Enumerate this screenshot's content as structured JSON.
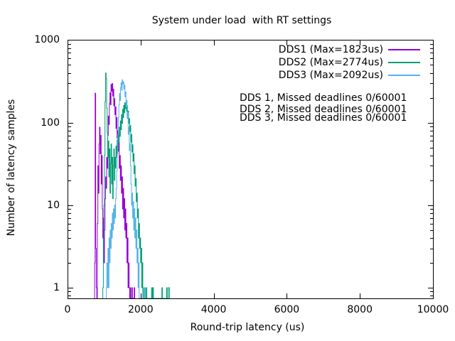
{
  "title": "System under load  with RT settings",
  "axes": {
    "xlabel": "Round-trip latency (us)",
    "ylabel": "Number of latency samples",
    "x_ticks": [
      0,
      2000,
      4000,
      6000,
      8000,
      10000
    ],
    "y_ticks": [
      1,
      10,
      100,
      1000
    ]
  },
  "legend": [
    {
      "label": "DDS1 (Max=1823us)",
      "color": "#9400d3"
    },
    {
      "label": "DDS2 (Max=2774us)",
      "color": "#009e73"
    },
    {
      "label": "DDS3 (Max=2092us)",
      "color": "#56b4e9"
    }
  ],
  "annotations": [
    "DDS 1, Missed deadlines 0/60001",
    "DDS 2, Missed deadlines 0/60001",
    "DDS 3, Missed deadlines 0/60001"
  ],
  "chart_data": {
    "type": "bar",
    "subtype": "latency-histogram-steps",
    "title": "System under load  with RT settings",
    "xlabel": "Round-trip latency (us)",
    "ylabel": "Number of latency samples",
    "x_range": [
      0,
      10000
    ],
    "y_scale": "log10",
    "y_range": [
      1,
      1000
    ],
    "grid": false,
    "legend_position": "top-right-inside",
    "bin_width_us": 15,
    "series": [
      {
        "name": "DDS1 (Max=1823us)",
        "color": "#9400d3",
        "max_us": 1823,
        "missed_deadlines": "0/60001",
        "points": [
          [
            740,
            2
          ],
          [
            755,
            227
          ],
          [
            770,
            3
          ],
          [
            785,
            1
          ],
          [
            815,
            6
          ],
          [
            830,
            30
          ],
          [
            845,
            14
          ],
          [
            860,
            55
          ],
          [
            875,
            88
          ],
          [
            890,
            42
          ],
          [
            905,
            70
          ],
          [
            920,
            18
          ],
          [
            935,
            40
          ],
          [
            950,
            9
          ],
          [
            965,
            4
          ],
          [
            980,
            7
          ],
          [
            995,
            2
          ],
          [
            1010,
            5
          ],
          [
            1025,
            12
          ],
          [
            1040,
            22
          ],
          [
            1055,
            16
          ],
          [
            1070,
            38
          ],
          [
            1085,
            28
          ],
          [
            1100,
            70
          ],
          [
            1115,
            120
          ],
          [
            1130,
            95
          ],
          [
            1145,
            170
          ],
          [
            1160,
            230
          ],
          [
            1175,
            165
          ],
          [
            1190,
            290
          ],
          [
            1205,
            240
          ],
          [
            1220,
            297
          ],
          [
            1235,
            210
          ],
          [
            1250,
            255
          ],
          [
            1265,
            160
          ],
          [
            1280,
            195
          ],
          [
            1295,
            125
          ],
          [
            1310,
            155
          ],
          [
            1325,
            85
          ],
          [
            1340,
            115
          ],
          [
            1355,
            65
          ],
          [
            1370,
            80
          ],
          [
            1385,
            45
          ],
          [
            1400,
            58
          ],
          [
            1415,
            28
          ],
          [
            1430,
            40
          ],
          [
            1445,
            20
          ],
          [
            1460,
            30
          ],
          [
            1475,
            14
          ],
          [
            1490,
            22
          ],
          [
            1505,
            9
          ],
          [
            1520,
            16
          ],
          [
            1535,
            7
          ],
          [
            1550,
            12
          ],
          [
            1565,
            5
          ],
          [
            1580,
            9
          ],
          [
            1595,
            4
          ],
          [
            1610,
            6
          ],
          [
            1625,
            2
          ],
          [
            1640,
            4
          ],
          [
            1655,
            1
          ],
          [
            1670,
            2
          ],
          [
            1685,
            1
          ],
          [
            1715,
            1
          ],
          [
            1760,
            1
          ],
          [
            1823,
            1
          ]
        ]
      },
      {
        "name": "DDS2 (Max=2774us)",
        "color": "#009e73",
        "max_us": 2774,
        "missed_deadlines": "0/60001",
        "points": [
          [
            965,
            1
          ],
          [
            980,
            4
          ],
          [
            995,
            10
          ],
          [
            1010,
            40
          ],
          [
            1025,
            180
          ],
          [
            1040,
            399
          ],
          [
            1055,
            340
          ],
          [
            1070,
            150
          ],
          [
            1085,
            75
          ],
          [
            1100,
            38
          ],
          [
            1115,
            60
          ],
          [
            1130,
            22
          ],
          [
            1145,
            48
          ],
          [
            1160,
            14
          ],
          [
            1175,
            32
          ],
          [
            1190,
            55
          ],
          [
            1205,
            18
          ],
          [
            1220,
            38
          ],
          [
            1235,
            12
          ],
          [
            1250,
            30
          ],
          [
            1265,
            48
          ],
          [
            1280,
            20
          ],
          [
            1295,
            38
          ],
          [
            1310,
            28
          ],
          [
            1325,
            52
          ],
          [
            1340,
            38
          ],
          [
            1355,
            62
          ],
          [
            1370,
            48
          ],
          [
            1385,
            72
          ],
          [
            1400,
            58
          ],
          [
            1415,
            88
          ],
          [
            1430,
            68
          ],
          [
            1445,
            105
          ],
          [
            1460,
            82
          ],
          [
            1475,
            125
          ],
          [
            1490,
            98
          ],
          [
            1505,
            145
          ],
          [
            1520,
            115
          ],
          [
            1535,
            162
          ],
          [
            1550,
            132
          ],
          [
            1565,
            174
          ],
          [
            1580,
            148
          ],
          [
            1595,
            168
          ],
          [
            1610,
            138
          ],
          [
            1625,
            160
          ],
          [
            1640,
            118
          ],
          [
            1655,
            138
          ],
          [
            1670,
            98
          ],
          [
            1685,
            112
          ],
          [
            1700,
            78
          ],
          [
            1715,
            92
          ],
          [
            1730,
            58
          ],
          [
            1745,
            72
          ],
          [
            1760,
            44
          ],
          [
            1775,
            54
          ],
          [
            1790,
            34
          ],
          [
            1805,
            42
          ],
          [
            1820,
            24
          ],
          [
            1835,
            30
          ],
          [
            1850,
            17
          ],
          [
            1865,
            21
          ],
          [
            1880,
            11
          ],
          [
            1895,
            14
          ],
          [
            1910,
            7
          ],
          [
            1925,
            9
          ],
          [
            1940,
            4
          ],
          [
            1955,
            6
          ],
          [
            1970,
            3
          ],
          [
            1985,
            4
          ],
          [
            2000,
            2
          ],
          [
            2015,
            3
          ],
          [
            2030,
            1
          ],
          [
            2045,
            2
          ],
          [
            2070,
            1
          ],
          [
            2110,
            1
          ],
          [
            2155,
            1
          ],
          [
            2300,
            1
          ],
          [
            2335,
            1
          ],
          [
            2580,
            1
          ],
          [
            2710,
            1
          ],
          [
            2760,
            1
          ],
          [
            2774,
            1
          ]
        ]
      },
      {
        "name": "DDS3 (Max=2092us)",
        "color": "#56b4e9",
        "max_us": 2092,
        "missed_deadlines": "0/60001",
        "points": [
          [
            1060,
            1
          ],
          [
            1075,
            2
          ],
          [
            1090,
            1
          ],
          [
            1105,
            3
          ],
          [
            1120,
            1
          ],
          [
            1135,
            4
          ],
          [
            1150,
            2
          ],
          [
            1165,
            5
          ],
          [
            1180,
            3
          ],
          [
            1195,
            6
          ],
          [
            1210,
            4
          ],
          [
            1225,
            8
          ],
          [
            1240,
            5
          ],
          [
            1255,
            9
          ],
          [
            1270,
            6
          ],
          [
            1285,
            10
          ],
          [
            1300,
            7
          ],
          [
            1315,
            12
          ],
          [
            1330,
            16
          ],
          [
            1345,
            26
          ],
          [
            1360,
            42
          ],
          [
            1375,
            72
          ],
          [
            1390,
            115
          ],
          [
            1405,
            165
          ],
          [
            1420,
            225
          ],
          [
            1435,
            185
          ],
          [
            1450,
            265
          ],
          [
            1465,
            305
          ],
          [
            1480,
            245
          ],
          [
            1495,
            330
          ],
          [
            1510,
            292
          ],
          [
            1525,
            312
          ],
          [
            1540,
            255
          ],
          [
            1555,
            285
          ],
          [
            1570,
            205
          ],
          [
            1585,
            235
          ],
          [
            1600,
            155
          ],
          [
            1615,
            185
          ],
          [
            1630,
            112
          ],
          [
            1645,
            132
          ],
          [
            1660,
            72
          ],
          [
            1675,
            88
          ],
          [
            1690,
            46
          ],
          [
            1705,
            56
          ],
          [
            1720,
            30
          ],
          [
            1735,
            18
          ],
          [
            1750,
            10
          ],
          [
            1765,
            14
          ],
          [
            1780,
            7
          ],
          [
            1795,
            11
          ],
          [
            1810,
            5
          ],
          [
            1825,
            9
          ],
          [
            1840,
            4
          ],
          [
            1855,
            7
          ],
          [
            1870,
            3
          ],
          [
            1885,
            5
          ],
          [
            1900,
            2
          ],
          [
            1915,
            3
          ],
          [
            1930,
            1
          ],
          [
            1945,
            2
          ],
          [
            2080,
            1
          ],
          [
            2092,
            1
          ]
        ]
      }
    ]
  }
}
